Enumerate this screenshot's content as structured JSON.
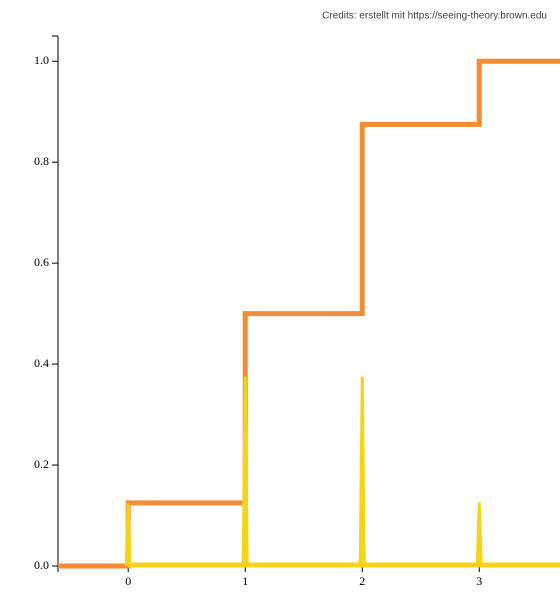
{
  "chart_data": {
    "type": "line",
    "credits": "Credits: erstellt mit https://seeing-theory.brown.edu",
    "x": [
      0,
      1,
      2,
      3
    ],
    "series": [
      {
        "style": "step",
        "color": "#f58b33",
        "values": [
          0.125,
          0.5,
          0.875,
          1.0
        ]
      },
      {
        "style": "spike",
        "color": "#f7d315",
        "values": [
          0.125,
          0.375,
          0.375,
          0.125
        ]
      }
    ],
    "xlim": [
      -0.6,
      3.69
    ],
    "ylim": [
      0,
      1.05
    ],
    "xticks": [
      0,
      1,
      2,
      3
    ],
    "yticks": [
      {
        "value": 0,
        "label": "0.0"
      },
      {
        "value": 0.2,
        "label": "0.2"
      },
      {
        "value": 0.4,
        "label": "0.4"
      },
      {
        "value": 0.6,
        "label": "0.6"
      },
      {
        "value": 0.8,
        "label": "0.8"
      },
      {
        "value": 1.0,
        "label": "1.0"
      }
    ]
  }
}
